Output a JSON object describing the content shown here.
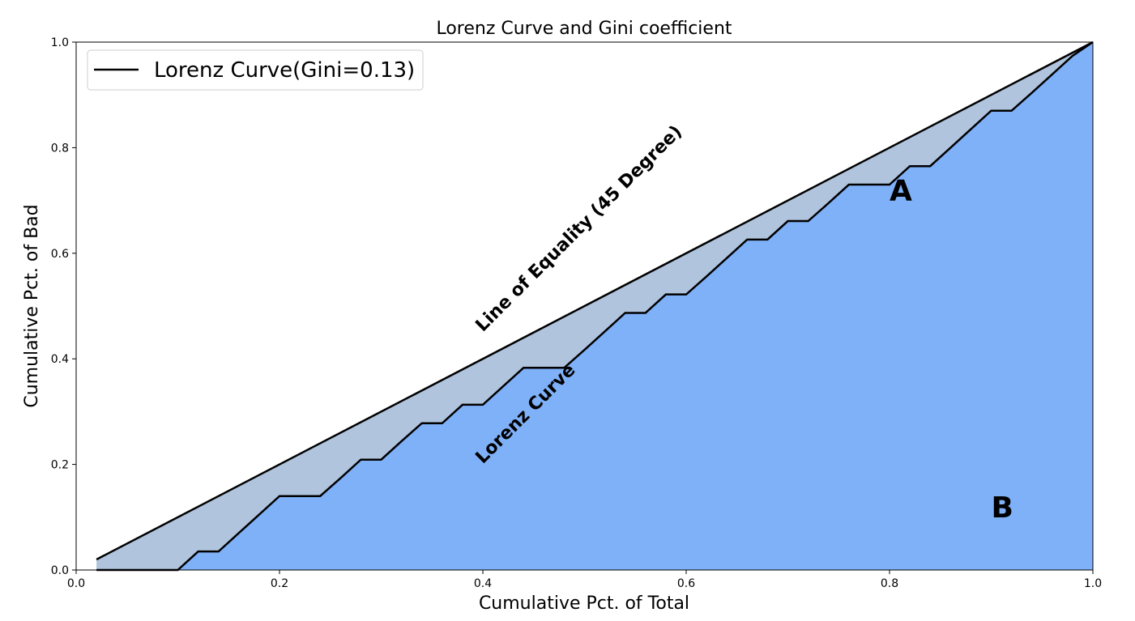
{
  "chart_data": {
    "type": "area",
    "title": "Lorenz Curve and Gini coefficient",
    "xlabel": "Cumulative Pct. of Total",
    "ylabel": "Cumulative Pct. of Bad",
    "xlim": [
      0.0,
      1.0
    ],
    "ylim": [
      0.0,
      1.0
    ],
    "x_ticks": [
      "0.0",
      "0.2",
      "0.4",
      "0.6",
      "0.8",
      "1.0"
    ],
    "y_ticks": [
      "0.0",
      "0.2",
      "0.4",
      "0.6",
      "0.8",
      "1.0"
    ],
    "grid": false,
    "legend": {
      "placement": "top-left",
      "entries": [
        "Lorenz Curve(Gini=0.13)"
      ]
    },
    "series": [
      {
        "name": "Line of Equality (45 Degree)",
        "x": [
          0.02,
          1.0
        ],
        "y": [
          0.02,
          1.0
        ]
      },
      {
        "name": "Lorenz Curve(Gini=0.13)",
        "x": [
          0.02,
          0.04,
          0.06,
          0.08,
          0.1,
          0.12,
          0.14,
          0.16,
          0.18,
          0.2,
          0.22,
          0.24,
          0.26,
          0.28,
          0.3,
          0.32,
          0.34,
          0.36,
          0.38,
          0.4,
          0.42,
          0.44,
          0.46,
          0.48,
          0.5,
          0.52,
          0.54,
          0.56,
          0.58,
          0.6,
          0.62,
          0.64,
          0.66,
          0.68,
          0.7,
          0.72,
          0.74,
          0.76,
          0.78,
          0.8,
          0.82,
          0.84,
          0.86,
          0.88,
          0.9,
          0.92,
          0.94,
          0.96,
          0.98,
          1.0
        ],
        "y": [
          0.0,
          0.0,
          0.0,
          0.0,
          0.0,
          0.035,
          0.035,
          0.07,
          0.105,
          0.14,
          0.14,
          0.14,
          0.174,
          0.209,
          0.209,
          0.244,
          0.278,
          0.278,
          0.313,
          0.313,
          0.348,
          0.383,
          0.383,
          0.383,
          0.417,
          0.452,
          0.487,
          0.487,
          0.522,
          0.522,
          0.556,
          0.591,
          0.626,
          0.626,
          0.661,
          0.661,
          0.695,
          0.73,
          0.73,
          0.73,
          0.765,
          0.765,
          0.8,
          0.835,
          0.87,
          0.87,
          0.904,
          0.939,
          0.974,
          1.0
        ]
      }
    ],
    "fill_colors": {
      "area_A": "#b0c4de",
      "area_B": "#7fb1f8"
    },
    "line_color": "#000000",
    "annotations": [
      {
        "text": "Line of Equality (45 Degree)",
        "x": 0.4,
        "y": 0.45,
        "rotation": 45
      },
      {
        "text": "Lorenz Curve",
        "x": 0.4,
        "y": 0.2,
        "rotation": 45
      },
      {
        "text": "A",
        "x": 0.8,
        "y": 0.7
      },
      {
        "text": "B",
        "x": 0.9,
        "y": 0.1
      }
    ]
  }
}
